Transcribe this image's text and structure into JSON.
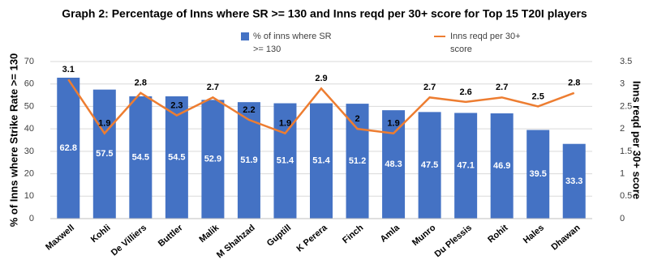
{
  "chart_data": {
    "type": "bar-line",
    "title": "Graph 2: Percentage of Inns where SR >= 130 and Inns reqd per 30+ score for Top 15 T20I players",
    "y_label": "% of Inns where Strike Rate >= 130",
    "y2_label": "Inns reqd per 30+ score",
    "categories": [
      "Maxwell",
      "Kohli",
      "De Villiers",
      "Buttler",
      "Malik",
      "M Shahzad",
      "Guptill",
      "K Perera",
      "Finch",
      "Amla",
      "Munro",
      "Du Plessis",
      "Rohit",
      "Hales",
      "Dhawan"
    ],
    "series": [
      {
        "name": "% of inns where SR >= 130",
        "type": "bar",
        "color": "#4472c4",
        "values": [
          62.8,
          57.5,
          54.5,
          54.5,
          52.9,
          51.9,
          51.4,
          51.4,
          51.2,
          48.3,
          47.5,
          47.1,
          46.9,
          39.5,
          33.3
        ]
      },
      {
        "name": "Inns reqd per 30+ score",
        "type": "line",
        "axis": "y2",
        "color": "#ed7d31",
        "values": [
          3.1,
          1.9,
          2.8,
          2.3,
          2.7,
          2.2,
          1.9,
          2.9,
          2,
          1.9,
          2.7,
          2.6,
          2.7,
          2.5,
          2.8
        ]
      }
    ],
    "ylim": [
      0,
      70
    ],
    "yticks": [
      0,
      10,
      20,
      30,
      40,
      50,
      60,
      70
    ],
    "y2lim": [
      0,
      3.5
    ],
    "y2ticks": [
      0,
      0.5,
      1,
      1.5,
      2,
      2.5,
      3,
      3.5
    ],
    "grid": true
  }
}
